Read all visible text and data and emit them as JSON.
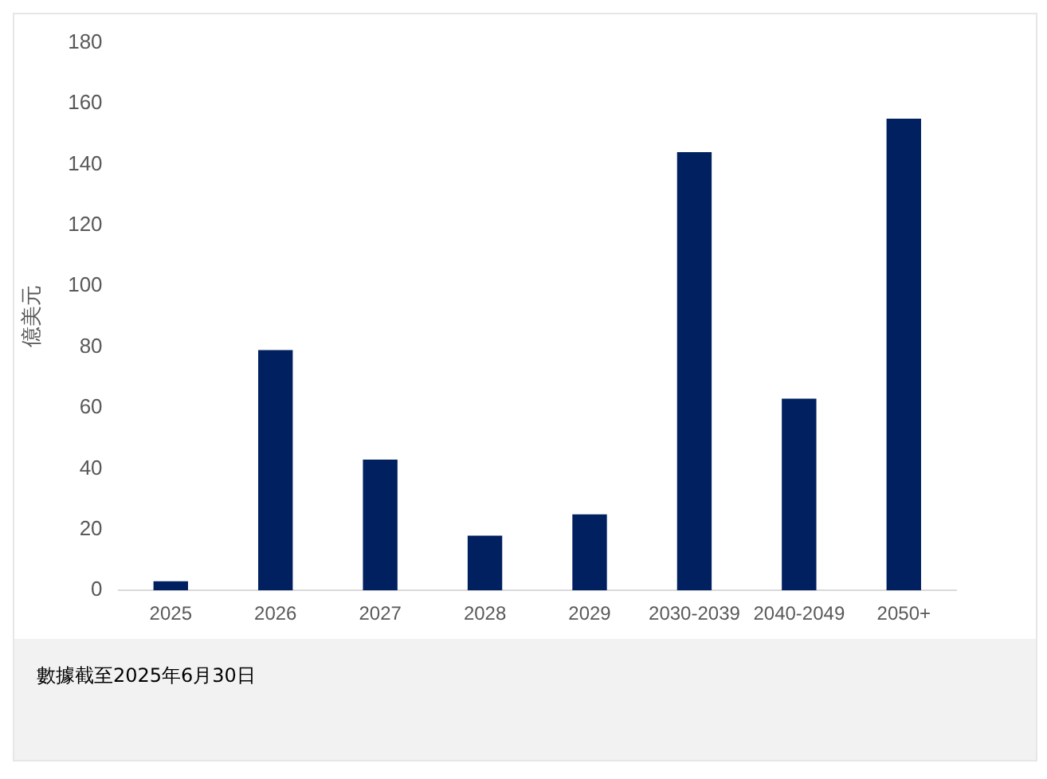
{
  "chart_data": {
    "type": "bar",
    "ylabel": "億美元",
    "categories": [
      "2025",
      "2026",
      "2027",
      "2028",
      "2029",
      "2030-2039",
      "2040-2049",
      "2050+"
    ],
    "values": [
      3,
      79,
      43,
      18,
      25,
      144,
      63,
      155
    ],
    "color": "#002060",
    "ylim": [
      0,
      180
    ],
    "yticks": [
      0,
      20,
      40,
      60,
      80,
      100,
      120,
      140,
      160,
      180
    ],
    "grid": false,
    "legend": false,
    "annotations": [
      "數據截至2025年6月30日"
    ]
  }
}
